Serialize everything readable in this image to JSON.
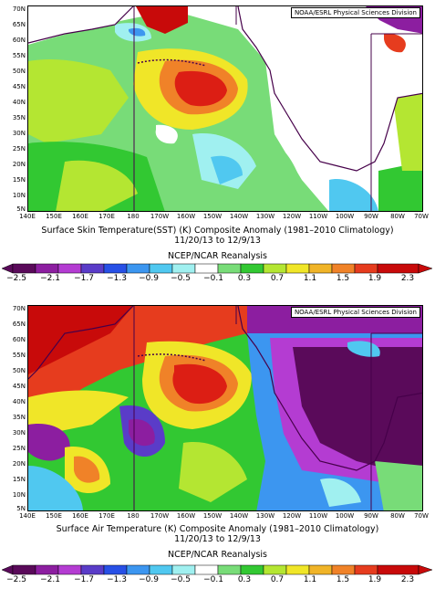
{
  "panels": [
    {
      "credit": "NOAA/ESRL Physical Sciences Division",
      "title_line1": "Surface Skin Temperature(SST) (K) Composite Anomaly (1981–2010 Climatology)",
      "title_line2": "11/20/13  to 12/9/13",
      "title_line3": "NCEP/NCAR Reanalysis"
    },
    {
      "credit": "NOAA/ESRL Physical Sciences Division",
      "title_line1": "Surface Air Temperature (K) Composite Anomaly (1981–2010 Climatology)",
      "title_line2": "11/20/13  to 12/9/13",
      "title_line3": "NCEP/NCAR Reanalysis"
    }
  ],
  "lat_labels": [
    "70N",
    "65N",
    "60N",
    "55N",
    "50N",
    "45N",
    "40N",
    "35N",
    "30N",
    "25N",
    "20N",
    "15N",
    "10N",
    "5N"
  ],
  "lon_labels": [
    "140E",
    "150E",
    "160E",
    "170E",
    "180",
    "170W",
    "160W",
    "150W",
    "140W",
    "130W",
    "120W",
    "110W",
    "100W",
    "90W",
    "80W",
    "70W"
  ],
  "colorbar_labels": [
    "−2.5",
    "−2.1",
    "−1.7",
    "−1.3",
    "−0.9",
    "−0.5",
    "−0.1",
    "0.3",
    "0.7",
    "1.1",
    "1.5",
    "1.9",
    "2.3"
  ],
  "colors": {
    "deep_purple": "#5a0a5a",
    "purple": "#8c1ea0",
    "violet": "#b43cd2",
    "indigo": "#5a3cc8",
    "blue": "#2850e6",
    "sky": "#3c96f0",
    "cyan": "#50c8f0",
    "pale_cyan": "#a0f0f0",
    "white": "#ffffff",
    "light_green": "#78dc78",
    "green": "#32c832",
    "yellow_green": "#b4e632",
    "yellow": "#f0e628",
    "gold": "#f0b428",
    "orange": "#f08228",
    "red": "#e63c1e",
    "dark_red": "#c80a0a"
  }
}
